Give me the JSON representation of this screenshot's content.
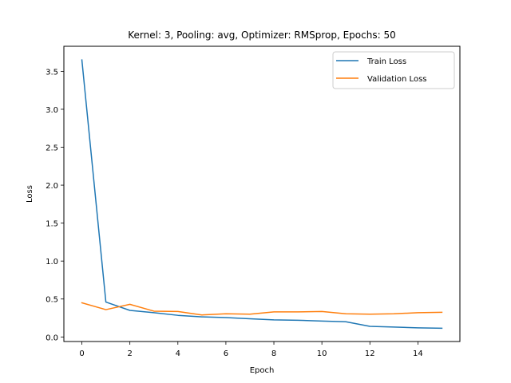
{
  "chart_data": {
    "type": "line",
    "title": "Kernel: 3, Pooling: avg, Optimizer: RMSprop, Epochs: 50",
    "xlabel": "Epoch",
    "ylabel": "Loss",
    "xlim": [
      -0.75,
      15.75
    ],
    "ylim": [
      -0.06,
      3.83
    ],
    "xticks": [
      0,
      2,
      4,
      6,
      8,
      10,
      12,
      14
    ],
    "yticks": [
      0.0,
      0.5,
      1.0,
      1.5,
      2.0,
      2.5,
      3.0,
      3.5
    ],
    "xtick_labels": [
      "0",
      "2",
      "4",
      "6",
      "8",
      "10",
      "12",
      "14"
    ],
    "ytick_labels": [
      "0.0",
      "0.5",
      "1.0",
      "1.5",
      "2.0",
      "2.5",
      "3.0",
      "3.5"
    ],
    "grid": false,
    "legend_position": "top-right",
    "x": [
      0,
      1,
      2,
      3,
      4,
      5,
      6,
      7,
      8,
      9,
      10,
      11,
      12,
      13,
      14,
      15
    ],
    "series": [
      {
        "name": "Train Loss",
        "color": "#1f77b4",
        "values": [
          3.65,
          0.46,
          0.35,
          0.32,
          0.285,
          0.265,
          0.255,
          0.24,
          0.225,
          0.22,
          0.21,
          0.2,
          0.14,
          0.13,
          0.12,
          0.115
        ]
      },
      {
        "name": "Validation Loss",
        "color": "#ff7f0e",
        "values": [
          0.45,
          0.36,
          0.43,
          0.34,
          0.335,
          0.29,
          0.305,
          0.3,
          0.33,
          0.33,
          0.335,
          0.305,
          0.3,
          0.305,
          0.32,
          0.325
        ]
      }
    ]
  }
}
